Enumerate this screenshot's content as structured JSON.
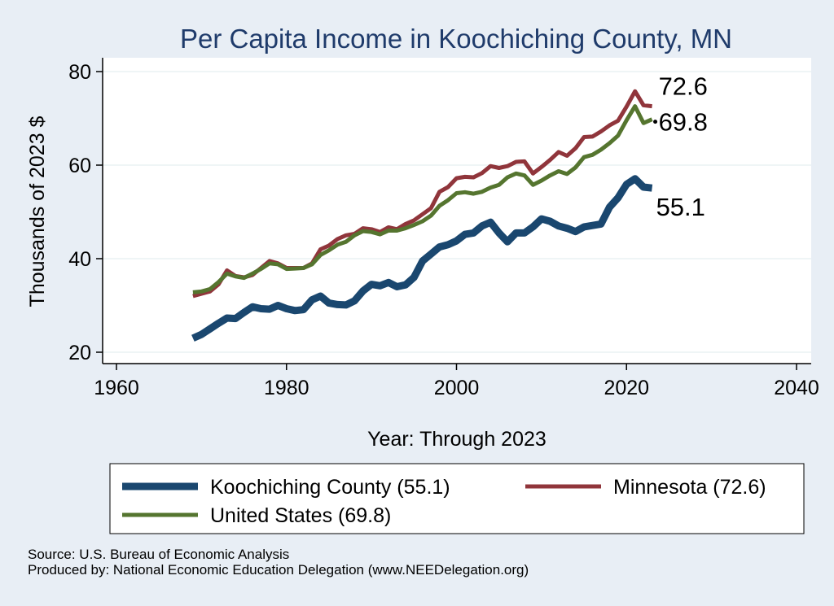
{
  "chart_data": {
    "type": "line",
    "title": "Per Capita Income in Koochiching County, MN",
    "xlabel": "Year: Through 2023",
    "ylabel": "Thousands of 2023 $",
    "xlim": [
      1960,
      2040
    ],
    "ylim": [
      20,
      80
    ],
    "xticks": [
      1960,
      1980,
      2000,
      2020,
      2040
    ],
    "yticks": [
      20,
      40,
      60,
      80
    ],
    "grid": true,
    "legend_position": "bottom",
    "x": [
      1969,
      1970,
      1971,
      1972,
      1973,
      1974,
      1975,
      1976,
      1977,
      1978,
      1979,
      1980,
      1981,
      1982,
      1983,
      1984,
      1985,
      1986,
      1987,
      1988,
      1989,
      1990,
      1991,
      1992,
      1993,
      1994,
      1995,
      1996,
      1997,
      1998,
      1999,
      2000,
      2001,
      2002,
      2003,
      2004,
      2005,
      2006,
      2007,
      2008,
      2009,
      2010,
      2011,
      2012,
      2013,
      2014,
      2015,
      2016,
      2017,
      2018,
      2019,
      2020,
      2021,
      2022,
      2023
    ],
    "series": [
      {
        "name": "Koochiching County (55.1)",
        "color": "#1a476f",
        "end_label": "55.1",
        "values": [
          23.0,
          23.8,
          25.0,
          26.2,
          27.3,
          27.2,
          28.5,
          29.7,
          29.3,
          29.2,
          30.0,
          29.3,
          28.9,
          29.1,
          31.2,
          32.0,
          30.5,
          30.2,
          30.1,
          31.0,
          33.1,
          34.5,
          34.2,
          34.9,
          34.0,
          34.4,
          36.0,
          39.5,
          41.0,
          42.5,
          43.0,
          43.8,
          45.2,
          45.5,
          47.0,
          47.8,
          45.5,
          43.6,
          45.5,
          45.5,
          46.8,
          48.5,
          48.0,
          47.0,
          46.5,
          45.8,
          46.8,
          47.1,
          47.4,
          51.0,
          53.0,
          55.9,
          57.1,
          55.3,
          55.1
        ]
      },
      {
        "name": "Minnesota (72.6)",
        "color": "#90353b",
        "end_label": "72.6",
        "values": [
          32.0,
          32.5,
          33.0,
          34.5,
          37.5,
          36.3,
          36.0,
          36.5,
          38.0,
          39.5,
          39.0,
          38.0,
          38.0,
          38.0,
          39.0,
          42.0,
          42.8,
          44.2,
          45.0,
          45.3,
          46.5,
          46.3,
          45.7,
          46.7,
          46.3,
          47.4,
          48.2,
          49.5,
          50.8,
          54.3,
          55.3,
          57.2,
          57.5,
          57.4,
          58.3,
          59.8,
          59.4,
          59.8,
          60.7,
          60.8,
          58.2,
          59.6,
          61.1,
          62.8,
          62.0,
          63.6,
          66.0,
          66.1,
          67.2,
          68.5,
          69.5,
          72.5,
          75.8,
          72.8,
          72.6
        ]
      },
      {
        "name": "United States (69.8)",
        "color": "#55752f",
        "end_label": "69.8",
        "values": [
          32.8,
          33.0,
          33.5,
          35.0,
          36.8,
          36.2,
          35.9,
          36.8,
          37.8,
          39.0,
          38.8,
          37.8,
          37.9,
          38.0,
          38.8,
          40.8,
          41.8,
          43.0,
          43.6,
          45.0,
          45.9,
          45.7,
          45.2,
          46.0,
          46.0,
          46.5,
          47.2,
          48.0,
          49.2,
          51.3,
          52.5,
          54.0,
          54.2,
          53.9,
          54.3,
          55.2,
          55.8,
          57.4,
          58.2,
          57.8,
          55.8,
          56.7,
          57.8,
          58.7,
          58.1,
          59.5,
          61.7,
          62.2,
          63.3,
          64.7,
          66.3,
          69.6,
          72.6,
          69.0,
          69.8
        ]
      }
    ]
  },
  "footer": {
    "source": "Source: U.S. Bureau of Economic Analysis",
    "produced_by": "Produced by: National Economic Education Delegation (www.NEEDelegation.org)"
  }
}
